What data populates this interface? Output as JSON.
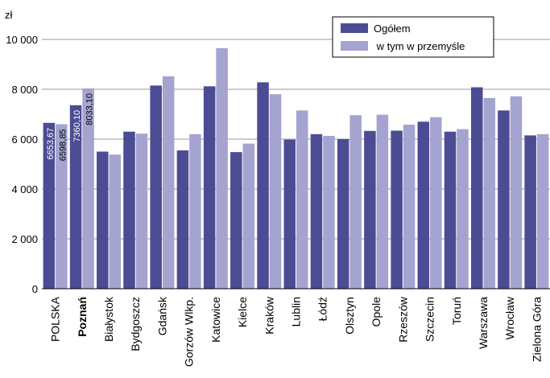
{
  "chart_data": {
    "type": "bar",
    "unit_label": "zł",
    "categories": [
      "POLSKA",
      "Poznań",
      "Białystok",
      "Bydgoszcz",
      "Gdańsk",
      "Gorzów Wlkp.",
      "Katowice",
      "Kielce",
      "Kraków",
      "Lublin",
      "Łódź",
      "Olsztyn",
      "Opole",
      "Rzeszów",
      "Szczecin",
      "Toruń",
      "Warszawa",
      "Wrocław",
      "Zielona Góra"
    ],
    "highlighted_category": "Poznań",
    "series": [
      {
        "name": "Ogółem",
        "color": "#4c4c94",
        "values": [
          6653.67,
          7360.1,
          5500,
          6300,
          8150,
          5550,
          8120,
          5480,
          8280,
          5980,
          6200,
          6000,
          6330,
          6340,
          6700,
          6300,
          8080,
          7150,
          6150
        ]
      },
      {
        "name": " w tym w przemyśle",
        "color": "#a5a3d0",
        "values": [
          6598.85,
          8033.1,
          5380,
          6220,
          8520,
          6200,
          9650,
          5820,
          7800,
          7150,
          6130,
          6960,
          6980,
          6580,
          6880,
          6400,
          7650,
          7720,
          6200
        ]
      }
    ],
    "data_labels": [
      {
        "category": "POLSKA",
        "series": 0,
        "text": "6653,67"
      },
      {
        "category": "POLSKA",
        "series": 1,
        "text": "6598,85"
      },
      {
        "category": "Poznań",
        "series": 0,
        "text": "7360,10"
      },
      {
        "category": "Poznań",
        "series": 1,
        "text": "8033,10"
      }
    ],
    "yticks": [
      0,
      2000,
      4000,
      6000,
      8000,
      10000
    ],
    "ytick_labels": [
      "0",
      "2 000",
      "4 000",
      "6 000",
      "8 000",
      "10 000"
    ],
    "ylim": [
      0,
      10500
    ],
    "grid": "horizontal",
    "legend_position": "top-right"
  }
}
